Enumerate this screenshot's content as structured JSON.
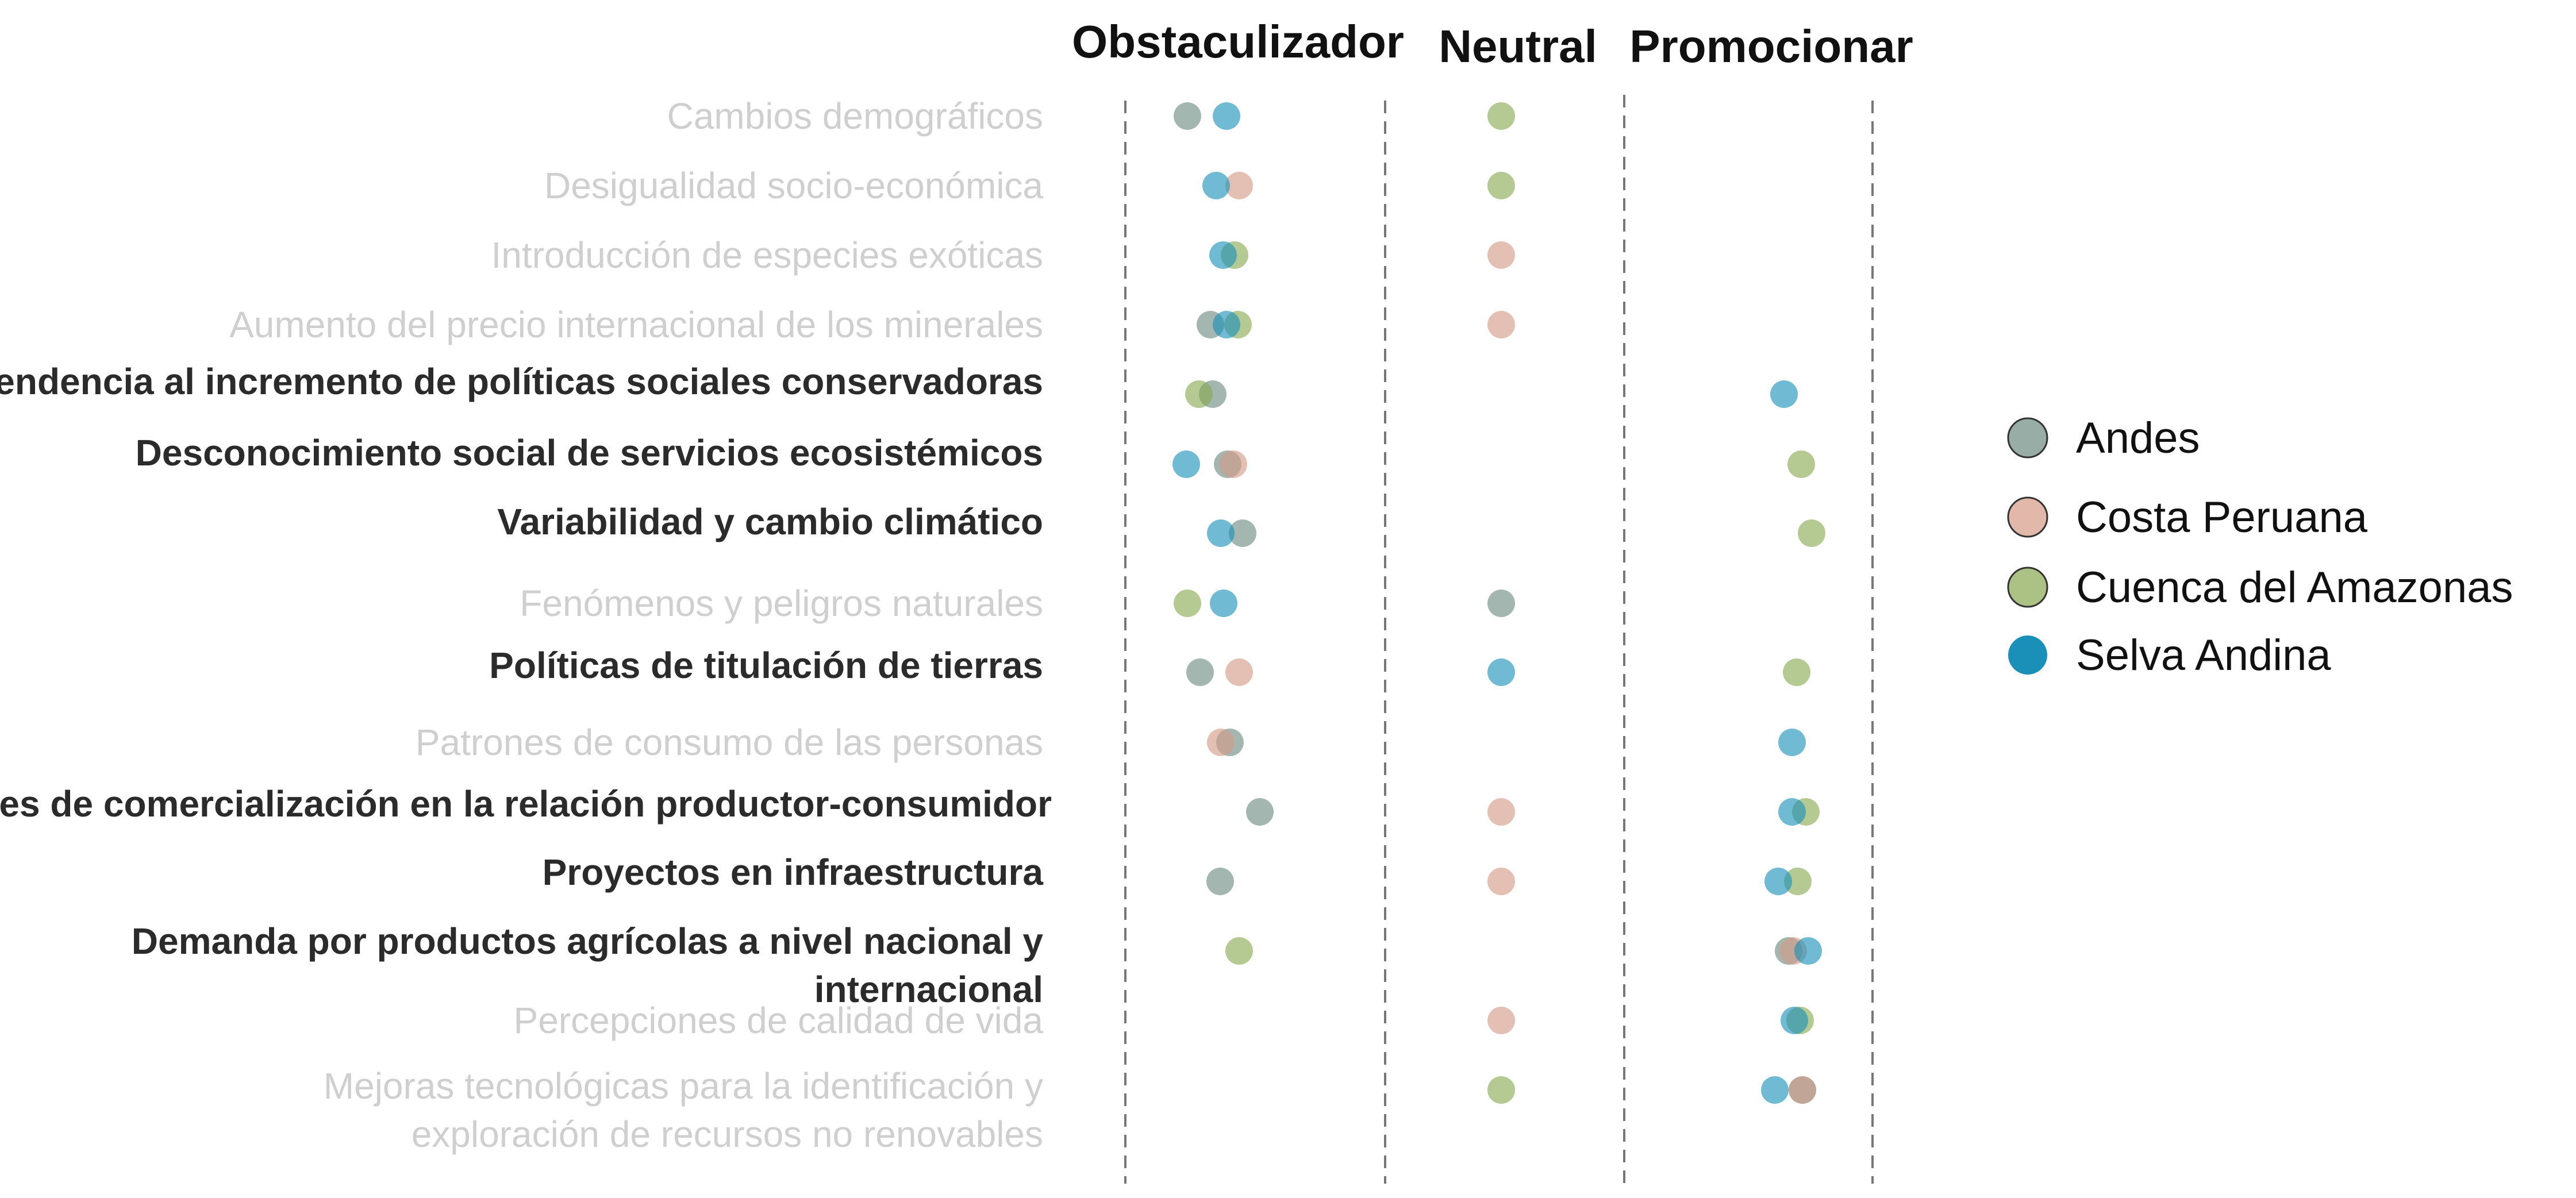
{
  "chart_data": {
    "type": "scatter",
    "categories_x": [
      "Obstaculizador",
      "Neutral",
      "Promocionar"
    ],
    "rows": [
      {
        "label": "Cambios demográficos",
        "emphasis": false
      },
      {
        "label": "Desigualidad socio-económica",
        "emphasis": false
      },
      {
        "label": "Introducción de especies exóticas",
        "emphasis": false
      },
      {
        "label": "Aumento del precio internacional de los minerales",
        "emphasis": false
      },
      {
        "label": "Tendencia al incremento de políticas sociales conservadoras",
        "emphasis": true
      },
      {
        "label": "Desconocimiento social de servicios ecosistémicos",
        "emphasis": true
      },
      {
        "label": "Variabilidad y cambio climático",
        "emphasis": true
      },
      {
        "label": "Fenómenos y peligros naturales",
        "emphasis": false
      },
      {
        "label": "Políticas de titulación de tierras",
        "emphasis": true
      },
      {
        "label": "Patrones de consumo de las personas",
        "emphasis": false
      },
      {
        "label": "Patrones de comercialización en la relación productor-consumidor",
        "emphasis": true
      },
      {
        "label": "Proyectos en infraestructura",
        "emphasis": true
      },
      {
        "label": "Demanda por productos agrícolas a nivel nacional y internacional",
        "emphasis": true
      },
      {
        "label": "Percepciones de calidad de vida",
        "emphasis": false
      },
      {
        "label": "Mejoras tecnológicas para la identificación y exploración de recursos no renovables",
        "emphasis": false
      }
    ],
    "series": [
      {
        "name": "Andes",
        "color": "#6b8a7f",
        "points": [
          [
            "Obstaculizador",
            0
          ],
          [
            "Obstaculizador",
            3
          ],
          [
            "Obstaculizador",
            4
          ],
          [
            "Obstaculizador",
            5
          ],
          [
            "Obstaculizador",
            6
          ],
          [
            "Neutral",
            7
          ],
          [
            "Obstaculizador",
            8
          ],
          [
            "Obstaculizador",
            9
          ],
          [
            "Obstaculizador",
            10
          ],
          [
            "Obstaculizador",
            11
          ],
          [
            "Promocionar",
            12
          ],
          [
            "Promocionar",
            14
          ]
        ]
      },
      {
        "name": "Costa Peruana",
        "color": "#d49a86",
        "points": [
          [
            "Obstaculizador",
            1
          ],
          [
            "Neutral",
            2
          ],
          [
            "Neutral",
            3
          ],
          [
            "Obstaculizador",
            5
          ],
          [
            "Obstaculizador",
            8
          ],
          [
            "Obstaculizador",
            9
          ],
          [
            "Neutral",
            10
          ],
          [
            "Neutral",
            11
          ],
          [
            "Promocionar",
            12
          ],
          [
            "Neutral",
            13
          ],
          [
            "Promocionar",
            14
          ]
        ]
      },
      {
        "name": "Cuenca del Amazonas",
        "color": "#88a850",
        "points": [
          [
            "Neutral",
            0
          ],
          [
            "Neutral",
            1
          ],
          [
            "Obstaculizador",
            2
          ],
          [
            "Obstaculizador",
            3
          ],
          [
            "Obstaculizador",
            4
          ],
          [
            "Promocionar",
            5
          ],
          [
            "Promocionar",
            6
          ],
          [
            "Obstaculizador",
            7
          ],
          [
            "Promocionar",
            8
          ],
          [
            "Promocionar",
            10
          ],
          [
            "Promocionar",
            11
          ],
          [
            "Obstaculizador",
            12
          ],
          [
            "Promocionar",
            13
          ],
          [
            "Neutral",
            14
          ]
        ]
      },
      {
        "name": "Selva Andina",
        "color": "#1a8fb8",
        "points": [
          [
            "Obstaculizador",
            0
          ],
          [
            "Obstaculizador",
            1
          ],
          [
            "Obstaculizador",
            2
          ],
          [
            "Obstaculizador",
            3
          ],
          [
            "Promocionar",
            4
          ],
          [
            "Obstaculizador",
            5
          ],
          [
            "Obstaculizador",
            6
          ],
          [
            "Obstaculizador",
            7
          ],
          [
            "Neutral",
            8
          ],
          [
            "Promocionar",
            9
          ],
          [
            "Promocionar",
            10
          ],
          [
            "Promocionar",
            11
          ],
          [
            "Promocionar",
            12
          ],
          [
            "Promocionar",
            13
          ],
          [
            "Promocionar",
            14
          ]
        ]
      }
    ],
    "legend": {
      "position": "right",
      "entries": [
        "Andes",
        "Costa Peruana",
        "Cuenca del Amazonas",
        "Selva Andina"
      ]
    },
    "grid": false
  }
}
